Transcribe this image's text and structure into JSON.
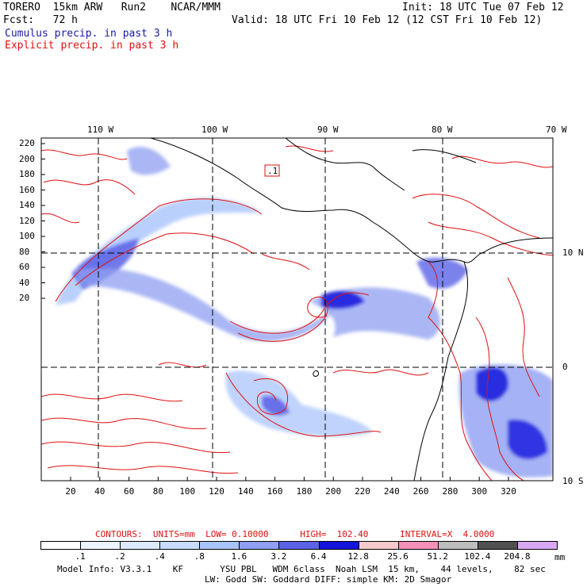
{
  "header": {
    "model": "TORERO  15km ARW   Run2    NCAR/MMM",
    "forecast": "Fcst:   72 h",
    "init": "Init: 18 UTC Tue 07 Feb 12",
    "valid": "Valid: 18 UTC Fri 10 Feb 12 (12 CST Fri 10 Feb 12)",
    "field1": "Cumulus precip. in past 3 h",
    "field2": "Explicit precip. in past 3 h"
  },
  "colors": {
    "field1": "#1a1aa8",
    "field2": "#e01010",
    "contour": "#e01010",
    "grid": "#000000"
  },
  "top_lon_labels": [
    "110 W",
    "100 W",
    "90 W",
    "80 W",
    "70 W"
  ],
  "right_lat_labels": [
    "10 N",
    "0",
    "10 S"
  ],
  "y_ticks": [
    "220",
    "200",
    "180",
    "160",
    "140",
    "120",
    "100",
    "80",
    "60",
    "40",
    "20"
  ],
  "x_ticks": [
    "20",
    "40",
    "60",
    "80",
    "100",
    "120",
    "140",
    "160",
    "180",
    "200",
    "220",
    "240",
    "260",
    "280",
    "300",
    "320"
  ],
  "map_box_label": ".1",
  "contour_info": {
    "label": "CONTOURS:  UNITS=mm  LOW= 0.10000      HIGH=  102.40      INTERVAL=X  4.0000"
  },
  "colorbar": {
    "unit": "mm",
    "labels": [
      ".1",
      ".2",
      ".4",
      ".8",
      "1.6",
      "3.2",
      "6.4",
      "12.8",
      "25.6",
      "51.2",
      "102.4",
      "204.8"
    ],
    "colors": [
      "#ffffff",
      "#eef4ff",
      "#dde9ff",
      "#c7dcff",
      "#a9c4fb",
      "#8f9ff2",
      "#5b62e6",
      "#1414dd",
      "#f4caca",
      "#f590b8",
      "#bdbdbd",
      "#505050",
      "#d8a8f5"
    ]
  },
  "footer": {
    "line1": "Model Info: V3.3.1    KF       YSU PBL   WDM 6class  Noah LSM  15 km,    44 levels,    82 sec",
    "line2": "LW: Godd SW: Goddard DIFF: simple KM: 2D Smagor"
  }
}
